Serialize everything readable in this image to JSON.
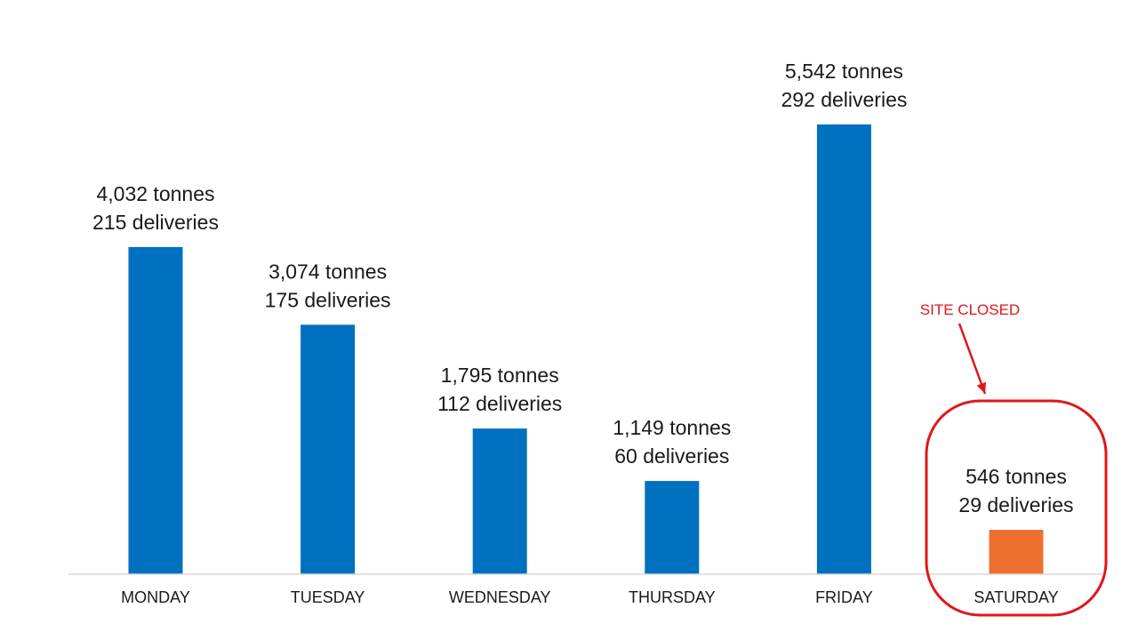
{
  "chart_data": {
    "type": "bar",
    "categories": [
      "MONDAY",
      "TUESDAY",
      "WEDNESDAY",
      "THURSDAY",
      "FRIDAY",
      "SATURDAY"
    ],
    "values": [
      4032,
      3074,
      1795,
      1149,
      5542,
      546
    ],
    "deliveries": [
      215,
      175,
      112,
      60,
      292,
      29
    ],
    "data_labels": [
      [
        "4,032 tonnes",
        "215 deliveries"
      ],
      [
        "3,074 tonnes",
        "175 deliveries"
      ],
      [
        "1,795 tonnes",
        "112 deliveries"
      ],
      [
        "1,149 tonnes",
        "60 deliveries"
      ],
      [
        "5,542 tonnes",
        "292 deliveries"
      ],
      [
        "546 tonnes",
        "29 deliveries"
      ]
    ],
    "bar_colors": [
      "#0070c0",
      "#0070c0",
      "#0070c0",
      "#0070c0",
      "#0070c0",
      "#ed7031"
    ],
    "title": "",
    "xlabel": "",
    "ylabel": "",
    "ylim": [
      0,
      5542
    ],
    "grid": false,
    "legend": "none",
    "annotation": {
      "text": "SITE CLOSED",
      "target_category": "SATURDAY",
      "color": "#e0161b"
    }
  }
}
